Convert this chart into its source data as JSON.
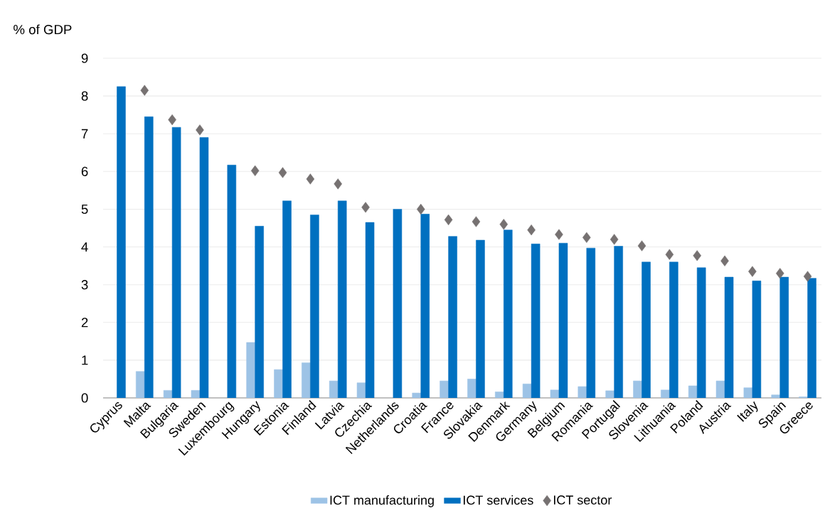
{
  "chart_data": {
    "type": "bar",
    "ylabel": "% of GDP",
    "categories": [
      "Cyprus",
      "Malta",
      "Bulgaria",
      "Sweden",
      "Luxembourg",
      "Hungary",
      "Estonia",
      "Finland",
      "Latvia",
      "Czechia",
      "Netherlands",
      "Croatia",
      "France",
      "Slovakia",
      "Denmark",
      "Germany",
      "Belgium",
      "Romania",
      "Portugal",
      "Slovenia",
      "Lithuania",
      "Poland",
      "Austria",
      "Italy",
      "Spain",
      "Greece"
    ],
    "series": [
      {
        "name": "ICT manufacturing",
        "color": "#9dc3e6",
        "values": [
          null,
          0.7,
          0.2,
          0.2,
          null,
          1.47,
          0.75,
          0.93,
          0.45,
          0.4,
          null,
          0.13,
          0.45,
          0.5,
          0.16,
          0.37,
          0.21,
          0.3,
          0.19,
          0.45,
          0.21,
          0.32,
          0.45,
          0.27,
          0.08,
          0.03
        ]
      },
      {
        "name": "ICT services",
        "color": "#0070c0",
        "values": [
          8.25,
          7.45,
          7.17,
          6.9,
          6.17,
          4.55,
          5.22,
          4.85,
          5.22,
          4.65,
          5.0,
          4.87,
          4.28,
          4.18,
          4.45,
          4.08,
          4.1,
          3.97,
          4.02,
          3.6,
          3.6,
          3.45,
          3.2,
          3.1,
          3.2,
          3.17
        ]
      },
      {
        "name": "ICT sector",
        "type": "scatter",
        "marker": "diamond",
        "color": "#767171",
        "values": [
          null,
          8.15,
          7.37,
          7.1,
          null,
          6.02,
          5.97,
          5.8,
          5.67,
          5.05,
          null,
          5.0,
          4.72,
          4.67,
          4.6,
          4.45,
          4.33,
          4.25,
          4.2,
          4.03,
          3.8,
          3.77,
          3.63,
          3.35,
          3.3,
          3.22
        ]
      }
    ],
    "ylim": [
      0,
      9
    ],
    "yticks": [
      0,
      1,
      2,
      3,
      4,
      5,
      6,
      7,
      8,
      9
    ],
    "grid": "y",
    "legend": "bottom"
  }
}
